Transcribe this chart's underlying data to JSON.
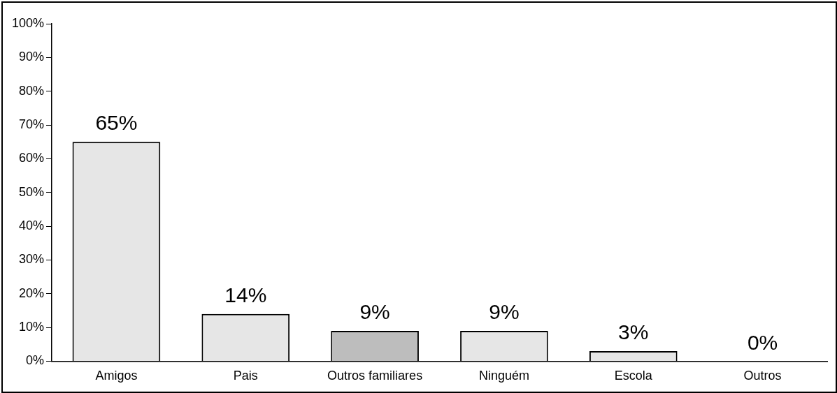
{
  "chart_data": {
    "type": "bar",
    "categories": [
      "Amigos",
      "Pais",
      "Outros familiares",
      "Ninguém",
      "Escola",
      "Outros"
    ],
    "values": [
      65,
      14,
      9,
      9,
      3,
      0
    ],
    "colors": [
      "#e6e6e6",
      "#e6e6e6",
      "#bdbdbd",
      "#e6e6e6",
      "#e6e6e6",
      "#e6e6e6"
    ],
    "value_labels": [
      "65%",
      "14%",
      "9%",
      "9%",
      "3%",
      "0%"
    ],
    "ylim": [
      0,
      100
    ],
    "yticks": [
      {
        "value": 0,
        "label": "0%"
      },
      {
        "value": 10,
        "label": "10%"
      },
      {
        "value": 20,
        "label": "20%"
      },
      {
        "value": 30,
        "label": "30%"
      },
      {
        "value": 40,
        "label": "40%"
      },
      {
        "value": 50,
        "label": "50%"
      },
      {
        "value": 60,
        "label": "60%"
      },
      {
        "value": 70,
        "label": "70%"
      },
      {
        "value": 80,
        "label": "80%"
      },
      {
        "value": 90,
        "label": "90%"
      },
      {
        "value": 100,
        "label": "100%"
      }
    ]
  }
}
